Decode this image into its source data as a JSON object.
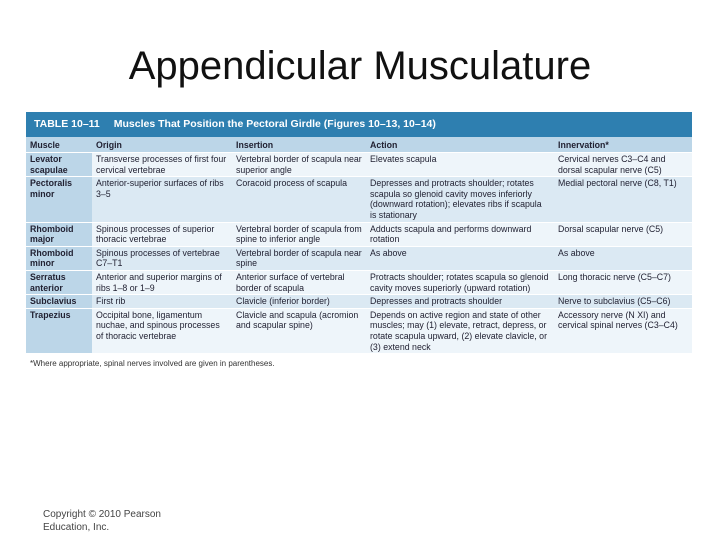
{
  "slide": {
    "title": "Appendicular Musculature",
    "copyright": "Copyright © 2010 Pearson Education, Inc."
  },
  "table": {
    "number": "TABLE 10–11",
    "caption": "Muscles That Position the Pectoral Girdle (Figures 10–13, 10–14)",
    "headers": {
      "muscle": "Muscle",
      "origin": "Origin",
      "insertion": "Insertion",
      "action": "Action",
      "innervation": "Innervation*"
    },
    "rows": [
      {
        "muscle": "Levator scapulae",
        "origin": "Transverse processes of first four cervical vertebrae",
        "insertion": "Vertebral border of scapula near superior angle",
        "action": "Elevates scapula",
        "innervation": "Cervical nerves C3–C4 and dorsal scapular nerve (C5)"
      },
      {
        "muscle": "Pectoralis minor",
        "origin": "Anterior-superior surfaces of ribs 3–5",
        "insertion": "Coracoid process of scapula",
        "action": "Depresses and protracts shoulder; rotates scapula so glenoid cavity moves inferiorly (downward rotation); elevates ribs if scapula is stationary",
        "innervation": "Medial pectoral nerve (C8, T1)"
      },
      {
        "muscle": "Rhomboid major",
        "origin": "Spinous processes of superior thoracic vertebrae",
        "insertion": "Vertebral border of scapula from spine to inferior angle",
        "action": "Adducts scapula and performs downward rotation",
        "innervation": "Dorsal scapular nerve (C5)"
      },
      {
        "muscle": "Rhomboid minor",
        "origin": "Spinous processes of vertebrae C7–T1",
        "insertion": "Vertebral border of scapula near spine",
        "action": "As above",
        "innervation": "As above"
      },
      {
        "muscle": "Serratus anterior",
        "origin": "Anterior and superior margins of ribs 1–8 or 1–9",
        "insertion": "Anterior surface of vertebral border of scapula",
        "action": "Protracts shoulder; rotates scapula so glenoid cavity moves superiorly (upward rotation)",
        "innervation": "Long thoracic nerve (C5–C7)"
      },
      {
        "muscle": "Subclavius",
        "origin": "First rib",
        "insertion": "Clavicle (inferior border)",
        "action": "Depresses and protracts shoulder",
        "innervation": "Nerve to subclavius (C5–C6)"
      },
      {
        "muscle": "Trapezius",
        "origin": "Occipital bone, ligamentum nuchae, and spinous processes of thoracic vertebrae",
        "insertion": "Clavicle and scapula (acromion and scapular spine)",
        "action": "Depends on active region and state of other muscles; may (1) elevate, retract, depress, or rotate scapula upward, (2) elevate clavicle, or (3) extend neck",
        "innervation": "Accessory nerve (N XI) and cervical spinal nerves (C3–C4)"
      }
    ],
    "footnote": "*Where appropriate, spinal nerves involved are given in parentheses."
  }
}
